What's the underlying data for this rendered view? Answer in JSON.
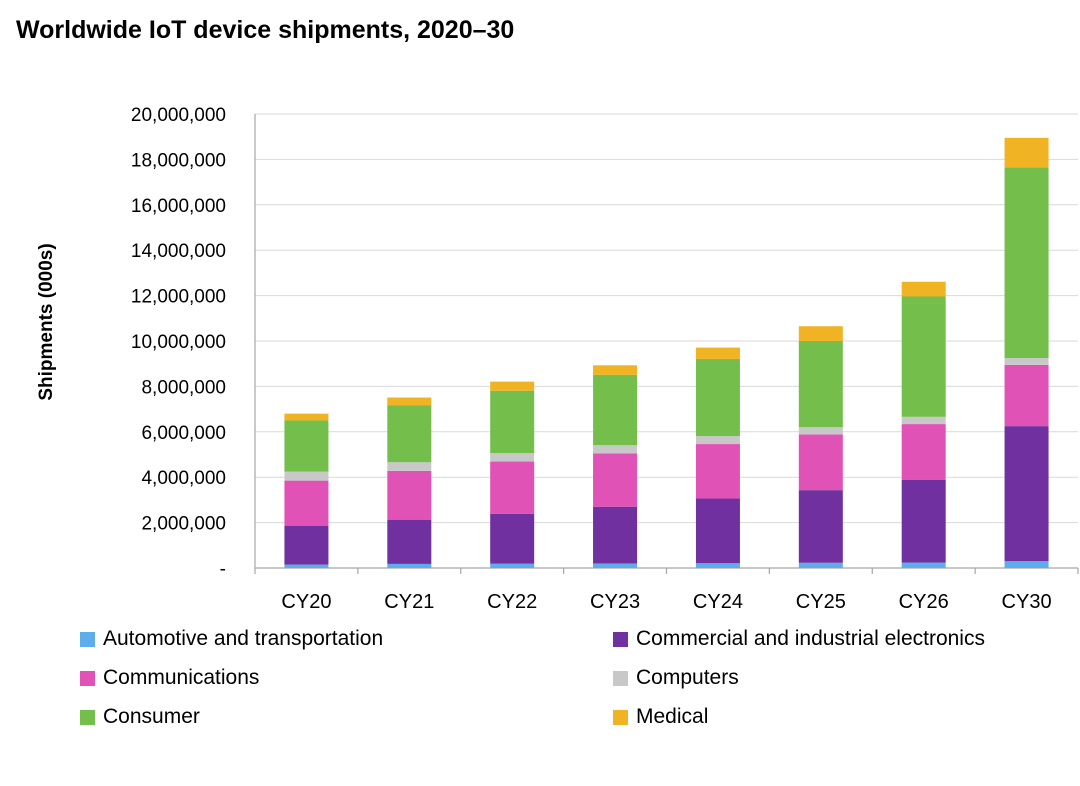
{
  "chart_data": {
    "type": "stacked-bar",
    "title": "Worldwide IoT device shipments, 2020–30",
    "xlabel": "",
    "ylabel": "Shipments (000s)",
    "ylim": [
      0,
      20000000
    ],
    "yticks": [
      0,
      2000000,
      4000000,
      6000000,
      8000000,
      10000000,
      12000000,
      14000000,
      16000000,
      18000000,
      20000000
    ],
    "ytick_labels": [
      "-",
      "2,000,000",
      "4,000,000",
      "6,000,000",
      "8,000,000",
      "10,000,000",
      "12,000,000",
      "14,000,000",
      "16,000,000",
      "18,000,000",
      "20,000,000"
    ],
    "grid": true,
    "legend_position": "bottom",
    "categories": [
      "CY20",
      "CY21",
      "CY22",
      "CY23",
      "CY24",
      "CY25",
      "CY26",
      "CY30"
    ],
    "series": [
      {
        "name": "Automotive and transportation",
        "color": "#5DADEC",
        "values": [
          150000,
          180000,
          190000,
          200000,
          210000,
          230000,
          240000,
          300000
        ]
      },
      {
        "name": "Commercial and industrial electronics",
        "color": "#7030A0",
        "values": [
          1700000,
          1950000,
          2200000,
          2500000,
          2850000,
          3200000,
          3650000,
          5950000
        ]
      },
      {
        "name": "Communications",
        "color": "#E052B5",
        "values": [
          2000000,
          2150000,
          2300000,
          2350000,
          2400000,
          2450000,
          2450000,
          2700000
        ]
      },
      {
        "name": "Computers",
        "color": "#C8C8C8",
        "values": [
          400000,
          380000,
          370000,
          360000,
          350000,
          320000,
          320000,
          300000
        ]
      },
      {
        "name": "Consumer",
        "color": "#74BE4C",
        "values": [
          2250000,
          2500000,
          2750000,
          3100000,
          3400000,
          3800000,
          5300000,
          8400000
        ]
      },
      {
        "name": "Medical",
        "color": "#F0B323",
        "values": [
          300000,
          350000,
          400000,
          420000,
          500000,
          650000,
          650000,
          1300000
        ]
      }
    ]
  }
}
